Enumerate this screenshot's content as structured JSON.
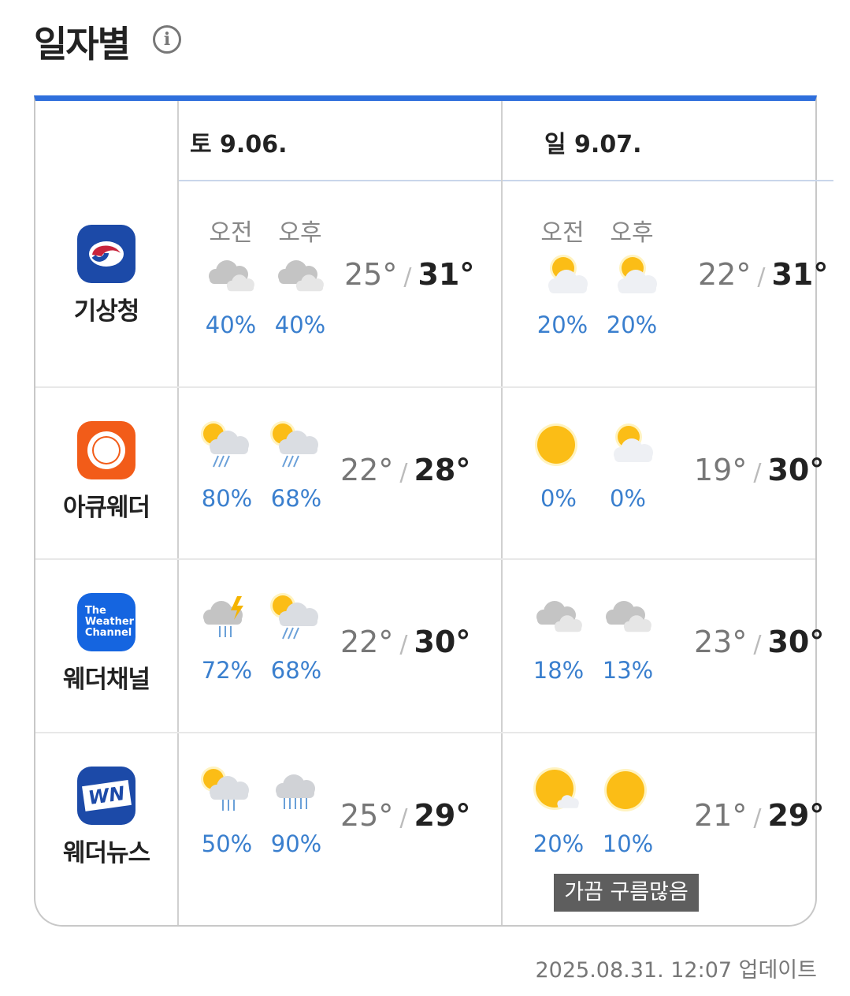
{
  "title": "일자별",
  "info_icon": "info-icon",
  "days": [
    {
      "label": "토 9.06."
    },
    {
      "label": "일 9.07."
    }
  ],
  "ampm": {
    "am": "오전",
    "pm": "오후"
  },
  "providers": [
    {
      "name": "기상청",
      "logo": "kma-logo",
      "days": [
        {
          "am": {
            "icon": "cloudy",
            "pop": "40%"
          },
          "pm": {
            "icon": "cloudy",
            "pop": "40%"
          },
          "low": "25°",
          "high": "31°"
        },
        {
          "am": {
            "icon": "partly-cloudy",
            "pop": "20%"
          },
          "pm": {
            "icon": "partly-cloudy",
            "pop": "20%"
          },
          "low": "22°",
          "high": "31°"
        }
      ]
    },
    {
      "name": "아큐웨더",
      "logo": "accuweather-logo",
      "days": [
        {
          "am": {
            "icon": "sun-rain",
            "pop": "80%"
          },
          "pm": {
            "icon": "sun-rain",
            "pop": "68%"
          },
          "low": "22°",
          "high": "28°"
        },
        {
          "am": {
            "icon": "sunny",
            "pop": "0%"
          },
          "pm": {
            "icon": "partly-cloudy",
            "pop": "0%"
          },
          "low": "19°",
          "high": "30°"
        }
      ]
    },
    {
      "name": "웨더채널",
      "logo": "weather-channel-logo",
      "logo_text": "The Weather Channel",
      "days": [
        {
          "am": {
            "icon": "thunder-rain",
            "pop": "72%"
          },
          "pm": {
            "icon": "sun-rain",
            "pop": "68%"
          },
          "low": "22°",
          "high": "30°"
        },
        {
          "am": {
            "icon": "cloudy",
            "pop": "18%"
          },
          "pm": {
            "icon": "cloudy",
            "pop": "13%"
          },
          "low": "23°",
          "high": "30°"
        }
      ]
    },
    {
      "name": "웨더뉴스",
      "logo": "weathernews-logo",
      "logo_text": "WN",
      "days": [
        {
          "am": {
            "icon": "sun-shower",
            "pop": "50%"
          },
          "pm": {
            "icon": "cloud-rain",
            "pop": "90%"
          },
          "low": "25°",
          "high": "29°"
        },
        {
          "am": {
            "icon": "mostly-sunny",
            "pop": "20%"
          },
          "pm": {
            "icon": "sunny",
            "pop": "10%"
          },
          "low": "21°",
          "high": "29°"
        }
      ]
    }
  ],
  "tooltip": "가끔 구름많음",
  "updated": "2025.08.31. 12:07 업데이트",
  "colors": {
    "accent": "#2f6fdc",
    "pop": "#3a7fce"
  }
}
